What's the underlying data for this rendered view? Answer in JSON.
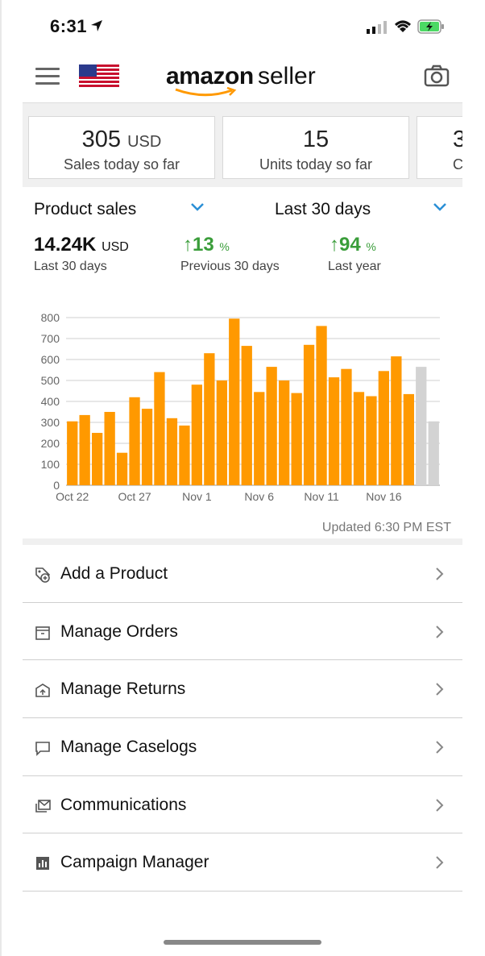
{
  "status": {
    "time": "6:31"
  },
  "header": {
    "logo_main": "amazon",
    "logo_sub": "seller"
  },
  "kpis": [
    {
      "value": "305",
      "unit": "USD",
      "label": "Sales today so far"
    },
    {
      "value": "15",
      "unit": "",
      "label": "Units today so far"
    },
    {
      "value": "3",
      "unit": "",
      "label": "C"
    }
  ],
  "filters": {
    "metric": "Product sales",
    "period": "Last 30 days"
  },
  "stats": {
    "total_value": "14.24K",
    "total_unit": "USD",
    "total_label": "Last 30 days",
    "prev_value": "13",
    "prev_unit": "%",
    "prev_label": "Previous 30 days",
    "year_value": "94",
    "year_unit": "%",
    "year_label": "Last year"
  },
  "chart_data": {
    "type": "bar",
    "ylim": [
      0,
      800
    ],
    "yticks": [
      0,
      100,
      200,
      300,
      400,
      500,
      600,
      700,
      800
    ],
    "xtick_labels": [
      "Oct 22",
      "Oct 27",
      "Nov 1",
      "Nov 6",
      "Nov 11",
      "Nov 16"
    ],
    "values": [
      305,
      335,
      250,
      350,
      155,
      420,
      365,
      540,
      320,
      285,
      480,
      630,
      500,
      795,
      665,
      445,
      565,
      500,
      440,
      670,
      760,
      515,
      555,
      445,
      425,
      545,
      615,
      435,
      565,
      305
    ],
    "colors": {
      "actual": "#FF9900",
      "projected": "#d3d3d3"
    },
    "projected_from_index": 28,
    "grid": true
  },
  "updated_text": "Updated 6:30 PM EST",
  "menu": [
    {
      "label": "Add a Product",
      "icon": "tag-add-icon"
    },
    {
      "label": "Manage Orders",
      "icon": "box-icon"
    },
    {
      "label": "Manage Returns",
      "icon": "return-box-icon"
    },
    {
      "label": "Manage Caselogs",
      "icon": "chat-bubble-icon"
    },
    {
      "label": "Communications",
      "icon": "messages-icon"
    },
    {
      "label": "Campaign Manager",
      "icon": "bar-chart-icon"
    }
  ]
}
